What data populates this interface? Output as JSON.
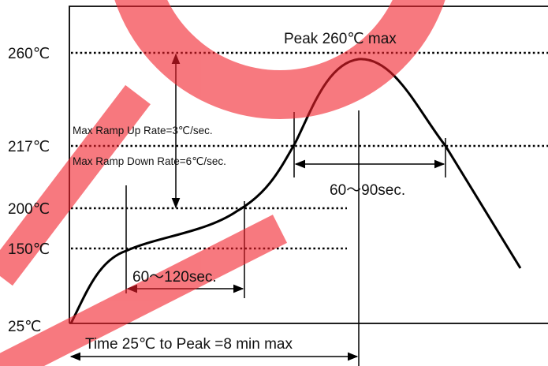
{
  "axis_labels": [
    "260℃",
    "217℃",
    "200℃",
    "150℃",
    "25℃"
  ],
  "peak_label": "Peak 260℃ max",
  "ramp_up": "Max Ramp Up Rate=3℃/sec.",
  "ramp_down": "Max Ramp Down Rate=6℃/sec.",
  "above_liquidus": "60～90sec.",
  "soak": "60～120sec.",
  "time_to_peak": "Time 25℃ to Peak =8 min max"
}
